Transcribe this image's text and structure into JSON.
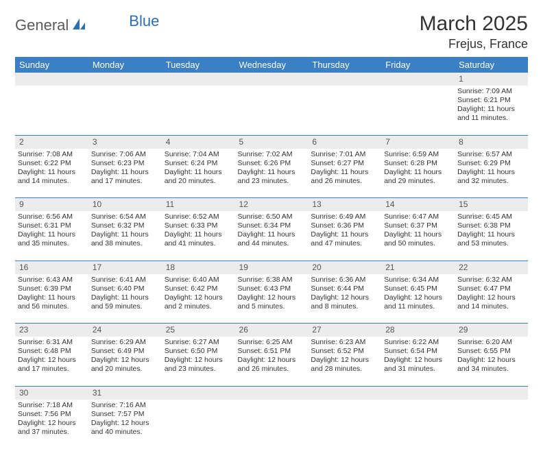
{
  "logo": {
    "part1": "General",
    "part2": "Blue"
  },
  "title": "March 2025",
  "location": "Frejus, France",
  "colors": {
    "header_bg": "#3b7fc4",
    "header_text": "#ffffff",
    "daynum_bg": "#ececec",
    "row_divider": "#3b7fc4",
    "logo_gray": "#5a5a5a",
    "logo_blue": "#2f6fb0",
    "page_bg": "#ffffff",
    "text": "#333333"
  },
  "weekdays": [
    "Sunday",
    "Monday",
    "Tuesday",
    "Wednesday",
    "Thursday",
    "Friday",
    "Saturday"
  ],
  "weeks": [
    {
      "nums": [
        "",
        "",
        "",
        "",
        "",
        "",
        "1"
      ],
      "cells": [
        null,
        null,
        null,
        null,
        null,
        null,
        {
          "sunrise": "7:09 AM",
          "sunset": "6:21 PM",
          "daylight": "11 hours and 11 minutes."
        }
      ]
    },
    {
      "nums": [
        "2",
        "3",
        "4",
        "5",
        "6",
        "7",
        "8"
      ],
      "cells": [
        {
          "sunrise": "7:08 AM",
          "sunset": "6:22 PM",
          "daylight": "11 hours and 14 minutes."
        },
        {
          "sunrise": "7:06 AM",
          "sunset": "6:23 PM",
          "daylight": "11 hours and 17 minutes."
        },
        {
          "sunrise": "7:04 AM",
          "sunset": "6:24 PM",
          "daylight": "11 hours and 20 minutes."
        },
        {
          "sunrise": "7:02 AM",
          "sunset": "6:26 PM",
          "daylight": "11 hours and 23 minutes."
        },
        {
          "sunrise": "7:01 AM",
          "sunset": "6:27 PM",
          "daylight": "11 hours and 26 minutes."
        },
        {
          "sunrise": "6:59 AM",
          "sunset": "6:28 PM",
          "daylight": "11 hours and 29 minutes."
        },
        {
          "sunrise": "6:57 AM",
          "sunset": "6:29 PM",
          "daylight": "11 hours and 32 minutes."
        }
      ]
    },
    {
      "nums": [
        "9",
        "10",
        "11",
        "12",
        "13",
        "14",
        "15"
      ],
      "cells": [
        {
          "sunrise": "6:56 AM",
          "sunset": "6:31 PM",
          "daylight": "11 hours and 35 minutes."
        },
        {
          "sunrise": "6:54 AM",
          "sunset": "6:32 PM",
          "daylight": "11 hours and 38 minutes."
        },
        {
          "sunrise": "6:52 AM",
          "sunset": "6:33 PM",
          "daylight": "11 hours and 41 minutes."
        },
        {
          "sunrise": "6:50 AM",
          "sunset": "6:34 PM",
          "daylight": "11 hours and 44 minutes."
        },
        {
          "sunrise": "6:49 AM",
          "sunset": "6:36 PM",
          "daylight": "11 hours and 47 minutes."
        },
        {
          "sunrise": "6:47 AM",
          "sunset": "6:37 PM",
          "daylight": "11 hours and 50 minutes."
        },
        {
          "sunrise": "6:45 AM",
          "sunset": "6:38 PM",
          "daylight": "11 hours and 53 minutes."
        }
      ]
    },
    {
      "nums": [
        "16",
        "17",
        "18",
        "19",
        "20",
        "21",
        "22"
      ],
      "cells": [
        {
          "sunrise": "6:43 AM",
          "sunset": "6:39 PM",
          "daylight": "11 hours and 56 minutes."
        },
        {
          "sunrise": "6:41 AM",
          "sunset": "6:40 PM",
          "daylight": "11 hours and 59 minutes."
        },
        {
          "sunrise": "6:40 AM",
          "sunset": "6:42 PM",
          "daylight": "12 hours and 2 minutes."
        },
        {
          "sunrise": "6:38 AM",
          "sunset": "6:43 PM",
          "daylight": "12 hours and 5 minutes."
        },
        {
          "sunrise": "6:36 AM",
          "sunset": "6:44 PM",
          "daylight": "12 hours and 8 minutes."
        },
        {
          "sunrise": "6:34 AM",
          "sunset": "6:45 PM",
          "daylight": "12 hours and 11 minutes."
        },
        {
          "sunrise": "6:32 AM",
          "sunset": "6:47 PM",
          "daylight": "12 hours and 14 minutes."
        }
      ]
    },
    {
      "nums": [
        "23",
        "24",
        "25",
        "26",
        "27",
        "28",
        "29"
      ],
      "cells": [
        {
          "sunrise": "6:31 AM",
          "sunset": "6:48 PM",
          "daylight": "12 hours and 17 minutes."
        },
        {
          "sunrise": "6:29 AM",
          "sunset": "6:49 PM",
          "daylight": "12 hours and 20 minutes."
        },
        {
          "sunrise": "6:27 AM",
          "sunset": "6:50 PM",
          "daylight": "12 hours and 23 minutes."
        },
        {
          "sunrise": "6:25 AM",
          "sunset": "6:51 PM",
          "daylight": "12 hours and 26 minutes."
        },
        {
          "sunrise": "6:23 AM",
          "sunset": "6:52 PM",
          "daylight": "12 hours and 28 minutes."
        },
        {
          "sunrise": "6:22 AM",
          "sunset": "6:54 PM",
          "daylight": "12 hours and 31 minutes."
        },
        {
          "sunrise": "6:20 AM",
          "sunset": "6:55 PM",
          "daylight": "12 hours and 34 minutes."
        }
      ]
    },
    {
      "nums": [
        "30",
        "31",
        "",
        "",
        "",
        "",
        ""
      ],
      "cells": [
        {
          "sunrise": "7:18 AM",
          "sunset": "7:56 PM",
          "daylight": "12 hours and 37 minutes."
        },
        {
          "sunrise": "7:16 AM",
          "sunset": "7:57 PM",
          "daylight": "12 hours and 40 minutes."
        },
        null,
        null,
        null,
        null,
        null
      ]
    }
  ],
  "labels": {
    "sunrise": "Sunrise:",
    "sunset": "Sunset:",
    "daylight": "Daylight:"
  }
}
